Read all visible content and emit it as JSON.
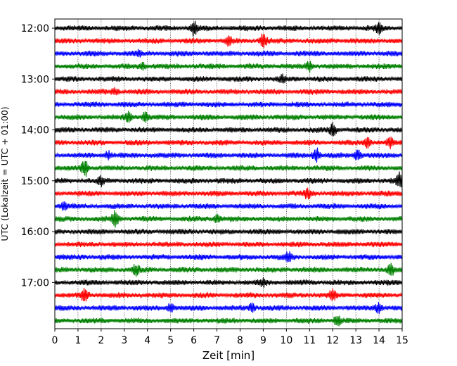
{
  "chart_data": {
    "type": "line",
    "xlabel": "Zeit  [min]",
    "ylabel": "UTC (Lokalzeit = UTC + 01:00)",
    "xlim": [
      0,
      15
    ],
    "x_ticks": [
      0,
      1,
      2,
      3,
      4,
      5,
      6,
      7,
      8,
      9,
      10,
      11,
      12,
      13,
      14,
      15
    ],
    "y_tick_labels": [
      "12:00",
      "13:00",
      "14:00",
      "15:00",
      "16:00",
      "17:00"
    ],
    "grid": "vertical dotted",
    "trace_colors": [
      "#000000",
      "#ff0000",
      "#0000ff",
      "#008000"
    ],
    "trace_start_times": [
      "12:00",
      "12:15",
      "12:30",
      "12:45",
      "13:00",
      "13:15",
      "13:30",
      "13:45",
      "14:00",
      "14:15",
      "14:30",
      "14:45",
      "15:00",
      "15:15",
      "15:30",
      "15:45",
      "16:00",
      "16:15",
      "16:30",
      "16:45",
      "17:00",
      "17:15",
      "17:30",
      "17:45"
    ],
    "events": [
      {
        "trace": 0,
        "x": 6.0,
        "amp": 9
      },
      {
        "trace": 0,
        "x": 14.0,
        "amp": 6
      },
      {
        "trace": 1,
        "x": 7.5,
        "amp": 6
      },
      {
        "trace": 1,
        "x": 9.0,
        "amp": 9
      },
      {
        "trace": 2,
        "x": 3.6,
        "amp": 3
      },
      {
        "trace": 3,
        "x": 3.8,
        "amp": 4
      },
      {
        "trace": 3,
        "x": 11.0,
        "amp": 6
      },
      {
        "trace": 4,
        "x": 9.8,
        "amp": 4
      },
      {
        "trace": 5,
        "x": 2.6,
        "amp": 4
      },
      {
        "trace": 7,
        "x": 3.2,
        "amp": 6
      },
      {
        "trace": 7,
        "x": 3.9,
        "amp": 6
      },
      {
        "trace": 8,
        "x": 12.0,
        "amp": 8
      },
      {
        "trace": 9,
        "x": 13.5,
        "amp": 7
      },
      {
        "trace": 9,
        "x": 14.5,
        "amp": 6
      },
      {
        "trace": 10,
        "x": 11.3,
        "amp": 9
      },
      {
        "trace": 10,
        "x": 13.1,
        "amp": 8
      },
      {
        "trace": 10,
        "x": 2.3,
        "amp": 5
      },
      {
        "trace": 11,
        "x": 1.3,
        "amp": 12
      },
      {
        "trace": 12,
        "x": 2.0,
        "amp": 5
      },
      {
        "trace": 12,
        "x": 14.9,
        "amp": 10
      },
      {
        "trace": 13,
        "x": 10.9,
        "amp": 7
      },
      {
        "trace": 14,
        "x": 0.4,
        "amp": 5
      },
      {
        "trace": 15,
        "x": 2.6,
        "amp": 10
      },
      {
        "trace": 15,
        "x": 7.0,
        "amp": 5
      },
      {
        "trace": 18,
        "x": 10.1,
        "amp": 5
      },
      {
        "trace": 19,
        "x": 3.5,
        "amp": 7
      },
      {
        "trace": 19,
        "x": 14.5,
        "amp": 8
      },
      {
        "trace": 20,
        "x": 9.0,
        "amp": 4
      },
      {
        "trace": 21,
        "x": 1.3,
        "amp": 10
      },
      {
        "trace": 21,
        "x": 12.0,
        "amp": 6
      },
      {
        "trace": 22,
        "x": 5.0,
        "amp": 6
      },
      {
        "trace": 22,
        "x": 8.5,
        "amp": 6
      },
      {
        "trace": 22,
        "x": 14.0,
        "amp": 6
      },
      {
        "trace": 23,
        "x": 12.2,
        "amp": 7
      }
    ]
  }
}
